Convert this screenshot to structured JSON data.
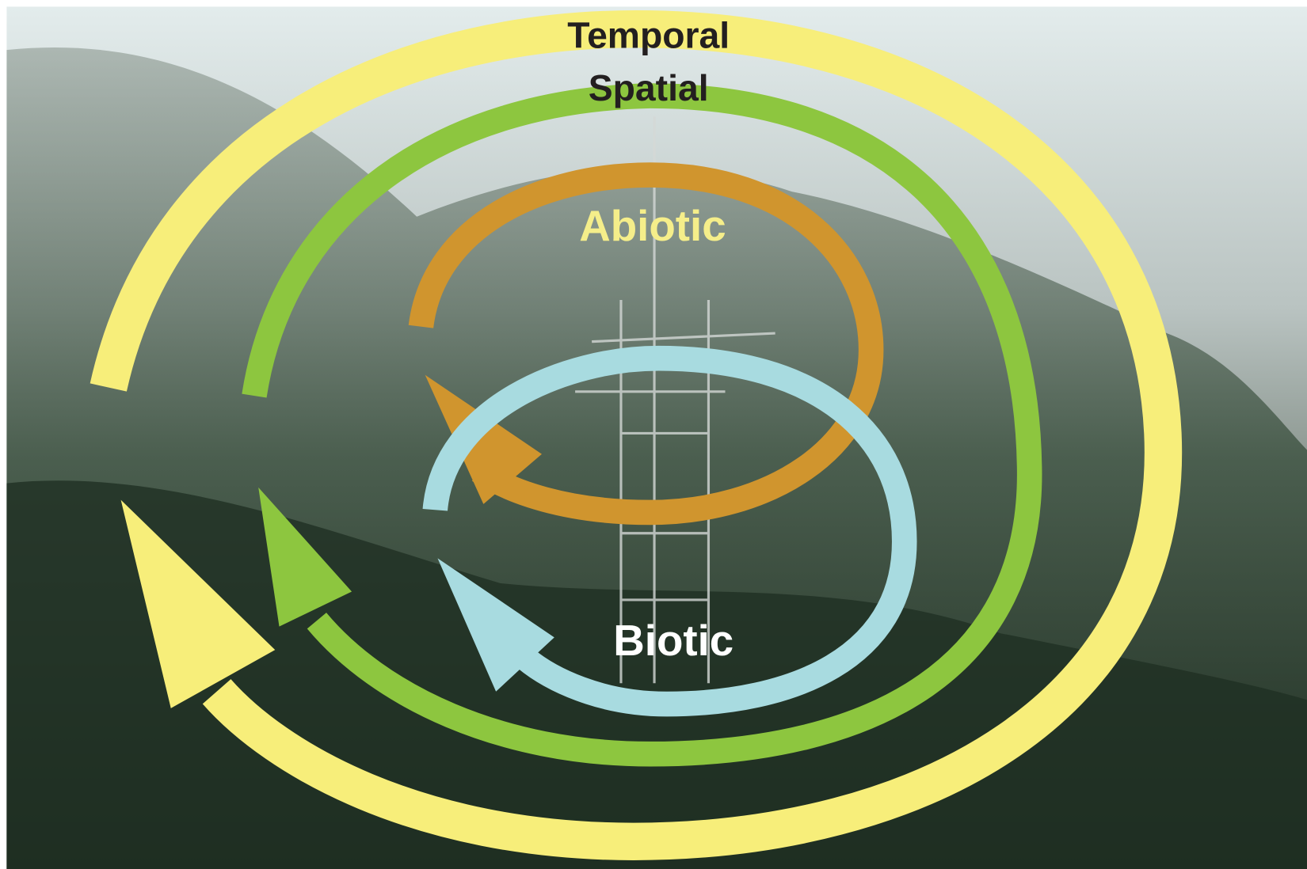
{
  "labels": {
    "temporal": "Temporal",
    "spatial": "Spatial",
    "abiotic": "Abiotic",
    "biotic": "Biotic"
  }
}
